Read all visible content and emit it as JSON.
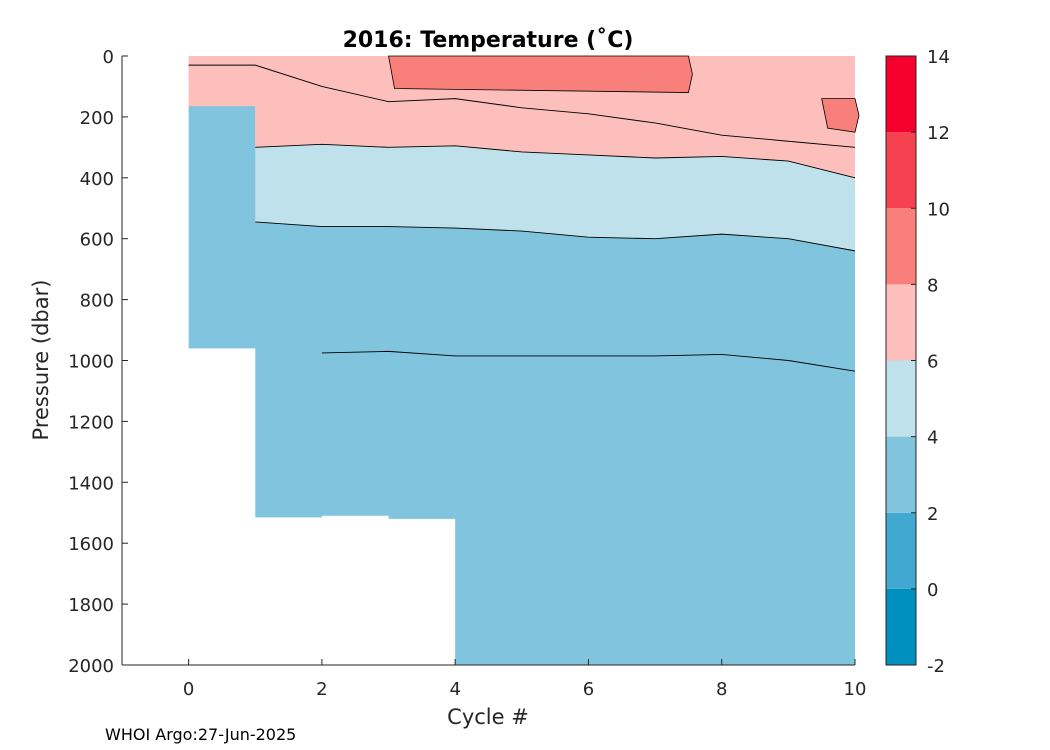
{
  "chart_data": {
    "type": "heatmap",
    "subtype": "filled-contour",
    "title": "2016:  Temperature (˚C)",
    "xlabel": "Cycle #",
    "ylabel": "Pressure (dbar)",
    "xlim": [
      -1,
      10
    ],
    "ylim": [
      0,
      2000
    ],
    "y_reversed": true,
    "x_ticks": [
      "0",
      "2",
      "4",
      "6",
      "8",
      "10"
    ],
    "y_ticks": [
      "0",
      "200",
      "400",
      "600",
      "800",
      "1000",
      "1200",
      "1400",
      "1600",
      "1800",
      "2000"
    ],
    "colorbar": {
      "ticks": [
        "-2",
        "0",
        "2",
        "4",
        "6",
        "8",
        "10",
        "12",
        "14"
      ],
      "levels": [
        {
          "range": [
            -2,
            0
          ],
          "color": "#0090bf"
        },
        {
          "range": [
            0,
            2
          ],
          "color": "#41a8cf"
        },
        {
          "range": [
            2,
            4
          ],
          "color": "#80c4dd"
        },
        {
          "range": [
            4,
            6
          ],
          "color": "#bfe1ec"
        },
        {
          "range": [
            6,
            8
          ],
          "color": "#fcbfbb"
        },
        {
          "range": [
            8,
            10
          ],
          "color": "#f9807a"
        },
        {
          "range": [
            10,
            12
          ],
          "color": "#f64151"
        },
        {
          "range": [
            12,
            14
          ],
          "color": "#f5002c"
        }
      ]
    },
    "cycles": [
      0,
      1,
      2,
      3,
      4,
      5,
      6,
      7,
      8,
      9,
      10
    ],
    "profile_max_depth_dbar": [
      165,
      960,
      1515,
      1510,
      1520,
      2000,
      2000,
      2000,
      2000,
      2000,
      2000
    ],
    "contours": [
      {
        "level": 8,
        "depth_dbar": [
          30,
          30,
          100,
          150,
          140,
          170,
          190,
          220,
          260,
          280,
          300
        ]
      },
      {
        "level": 6,
        "depth_dbar": [
          null,
          300,
          290,
          300,
          295,
          315,
          325,
          335,
          330,
          345,
          400
        ]
      },
      {
        "level": 4,
        "depth_dbar": [
          null,
          545,
          560,
          560,
          565,
          575,
          595,
          600,
          585,
          600,
          640
        ]
      },
      {
        "level": 2,
        "depth_dbar": [
          null,
          null,
          975,
          970,
          985,
          985,
          985,
          985,
          980,
          1000,
          1035
        ]
      }
    ],
    "warm_patches": [
      {
        "level": 8,
        "x": [
          3,
          7.5
        ],
        "depth_dbar": [
          0,
          120
        ]
      },
      {
        "level": 8,
        "x": [
          9.5,
          10
        ],
        "depth_dbar": [
          140,
          250
        ]
      }
    ]
  },
  "credit": "WHOI Argo:27-Jun-2025"
}
